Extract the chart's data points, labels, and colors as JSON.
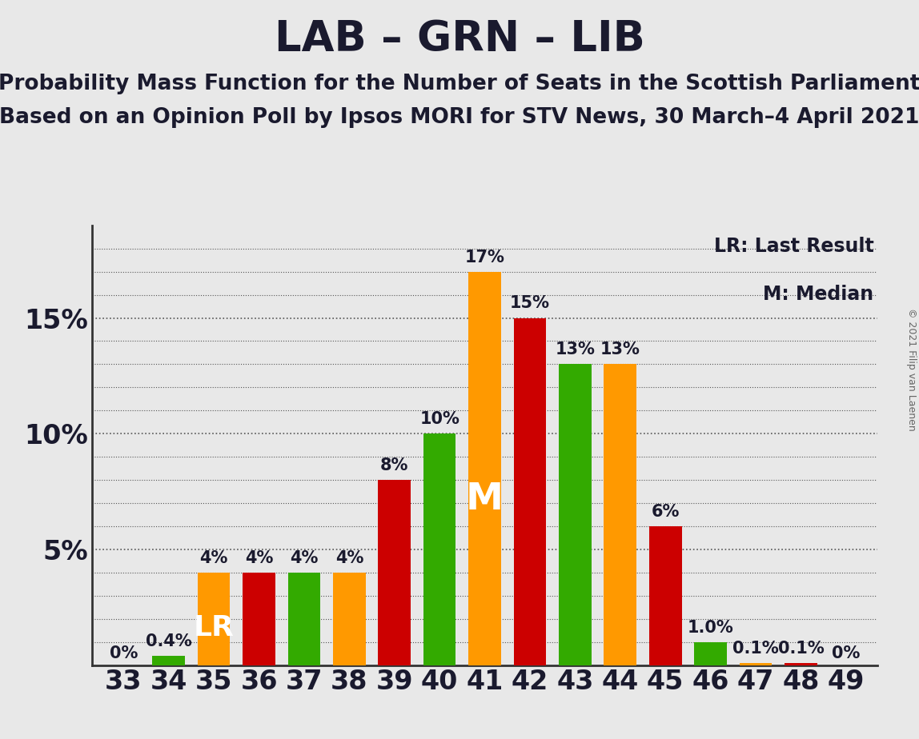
{
  "title": "LAB – GRN – LIB",
  "subtitle1": "Probability Mass Function for the Number of Seats in the Scottish Parliament",
  "subtitle2": "Based on an Opinion Poll by Ipsos MORI for STV News, 30 March–4 April 2021",
  "copyright": "© 2021 Filip van Laenen",
  "legend_lr": "LR: Last Result",
  "legend_m": "M: Median",
  "seats": [
    33,
    34,
    35,
    36,
    37,
    38,
    39,
    40,
    41,
    42,
    43,
    44,
    45,
    46,
    47,
    48,
    49
  ],
  "values": [
    0.0,
    0.4,
    4.0,
    4.0,
    4.0,
    4.0,
    8.0,
    10.0,
    17.0,
    15.0,
    13.0,
    13.0,
    6.0,
    1.0,
    0.1,
    0.1,
    0.0
  ],
  "colors": [
    "#cc0000",
    "#33aa00",
    "#ff9900",
    "#cc0000",
    "#33aa00",
    "#ff9900",
    "#cc0000",
    "#33aa00",
    "#ff9900",
    "#cc0000",
    "#33aa00",
    "#ff9900",
    "#cc0000",
    "#33aa00",
    "#ff9900",
    "#cc0000",
    "#33aa00"
  ],
  "bar_labels": [
    "0%",
    "0.4%",
    "4%",
    "4%",
    "4%",
    "4%",
    "8%",
    "10%",
    "17%",
    "15%",
    "13%",
    "13%",
    "6%",
    "1.0%",
    "0.1%",
    "0.1%",
    "0%"
  ],
  "lr_seat": 35,
  "median_seat": 41,
  "ylim_max": 19,
  "yticks": [
    5,
    10,
    15
  ],
  "ytick_labels": [
    "5%",
    "10%",
    "15%"
  ],
  "background_color": "#e8e8e8",
  "title_fontsize": 38,
  "subtitle_fontsize": 19,
  "bar_label_fontsize": 15,
  "tick_fontsize": 24,
  "lr_fontsize": 26,
  "m_fontsize": 34,
  "legend_fontsize": 17,
  "copyright_fontsize": 9
}
